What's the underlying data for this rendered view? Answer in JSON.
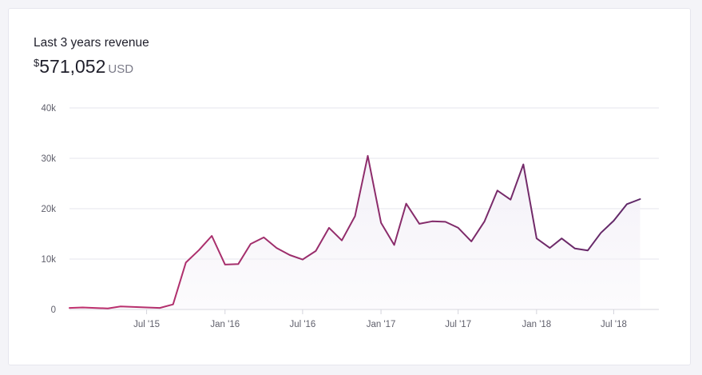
{
  "header": {
    "title": "Last 3 years revenue",
    "currency_symbol": "$",
    "total": "571,052",
    "currency_code": "USD"
  },
  "colors": {
    "line_start": "#c2316e",
    "line_end": "#5c2868",
    "area_fill": "#f3f0f7",
    "grid": "#e6e6ee"
  },
  "chart_data": {
    "type": "area",
    "title": "",
    "xlabel": "",
    "ylabel": "",
    "ylim": [
      0,
      40000
    ],
    "y_ticks": [
      {
        "value": 0,
        "label": "0"
      },
      {
        "value": 10000,
        "label": "10k"
      },
      {
        "value": 20000,
        "label": "20k"
      },
      {
        "value": 30000,
        "label": "30k"
      },
      {
        "value": 40000,
        "label": "40k"
      }
    ],
    "x_ticks": [
      {
        "date": "2015-07-01",
        "label": "Jul '15"
      },
      {
        "date": "2016-01-01",
        "label": "Jan '16"
      },
      {
        "date": "2016-07-01",
        "label": "Jul '16"
      },
      {
        "date": "2017-01-01",
        "label": "Jan '17"
      },
      {
        "date": "2017-07-01",
        "label": "Jul '17"
      },
      {
        "date": "2018-01-01",
        "label": "Jan '18"
      },
      {
        "date": "2018-07-01",
        "label": "Jul '18"
      }
    ],
    "xlim": [
      "2015-01-01",
      "2018-10-15"
    ],
    "grid": true,
    "series": [
      {
        "points": [
          [
            "2015-01-01",
            300
          ],
          [
            "2015-02-01",
            400
          ],
          [
            "2015-03-01",
            300
          ],
          [
            "2015-04-01",
            200
          ],
          [
            "2015-05-01",
            600
          ],
          [
            "2015-06-01",
            500
          ],
          [
            "2015-07-01",
            400
          ],
          [
            "2015-08-01",
            300
          ],
          [
            "2015-09-01",
            1000
          ],
          [
            "2015-10-01",
            9300
          ],
          [
            "2015-11-01",
            11800
          ],
          [
            "2015-12-01",
            14600
          ],
          [
            "2016-01-01",
            8900
          ],
          [
            "2016-02-01",
            9000
          ],
          [
            "2016-03-01",
            13000
          ],
          [
            "2016-04-01",
            14300
          ],
          [
            "2016-05-01",
            12200
          ],
          [
            "2016-06-01",
            10800
          ],
          [
            "2016-07-01",
            9900
          ],
          [
            "2016-08-01",
            11600
          ],
          [
            "2016-09-01",
            16200
          ],
          [
            "2016-10-01",
            13700
          ],
          [
            "2016-11-01",
            18500
          ],
          [
            "2016-12-01",
            30500
          ],
          [
            "2017-01-01",
            17200
          ],
          [
            "2017-02-01",
            12800
          ],
          [
            "2017-03-01",
            21000
          ],
          [
            "2017-04-01",
            17000
          ],
          [
            "2017-05-01",
            17500
          ],
          [
            "2017-06-01",
            17400
          ],
          [
            "2017-07-01",
            16200
          ],
          [
            "2017-08-01",
            13500
          ],
          [
            "2017-09-01",
            17500
          ],
          [
            "2017-10-01",
            23600
          ],
          [
            "2017-11-01",
            21800
          ],
          [
            "2017-12-01",
            28800
          ],
          [
            "2018-01-01",
            14100
          ],
          [
            "2018-02-01",
            12200
          ],
          [
            "2018-03-01",
            14100
          ],
          [
            "2018-04-01",
            12100
          ],
          [
            "2018-05-01",
            11700
          ],
          [
            "2018-06-01",
            15200
          ],
          [
            "2018-07-01",
            17600
          ],
          [
            "2018-08-01",
            20900
          ],
          [
            "2018-09-01",
            21900
          ]
        ]
      }
    ]
  }
}
